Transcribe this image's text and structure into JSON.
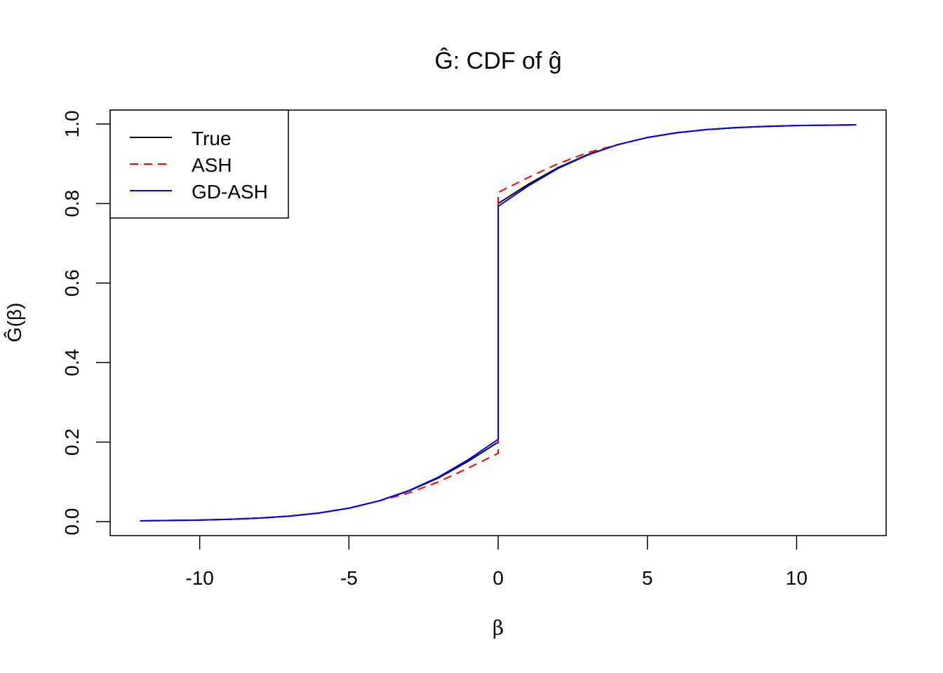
{
  "chart_data": {
    "type": "line",
    "title": "Ĝ: CDF of ĝ",
    "xlabel": "β",
    "ylabel": "Ĝ(β)",
    "xlim": [
      -13,
      13
    ],
    "ylim": [
      -0.035,
      1.035
    ],
    "xticks": [
      -10,
      -5,
      0,
      5,
      10
    ],
    "xtick_labels": [
      "-10",
      "-5",
      "0",
      "5",
      "10"
    ],
    "yticks": [
      0,
      0.2,
      0.4,
      0.6,
      0.8,
      1.0
    ],
    "ytick_labels": [
      "0.0",
      "0.2",
      "0.4",
      "0.6",
      "0.8",
      "1.0"
    ],
    "grid": false,
    "legend_position": "top-left",
    "series": [
      {
        "name": "True",
        "color": "#000000",
        "dash": "solid",
        "x": [
          -12,
          -11,
          -10,
          -9,
          -8,
          -7,
          -6,
          -5,
          -4,
          -3,
          -2,
          -1,
          0,
          0,
          1,
          2,
          3,
          4,
          5,
          6,
          7,
          8,
          9,
          10,
          11,
          12
        ],
        "y": [
          0.002,
          0.003,
          0.004,
          0.006,
          0.009,
          0.014,
          0.022,
          0.034,
          0.052,
          0.077,
          0.11,
          0.152,
          0.2,
          0.8,
          0.848,
          0.89,
          0.923,
          0.948,
          0.966,
          0.978,
          0.986,
          0.991,
          0.994,
          0.996,
          0.997,
          0.998
        ]
      },
      {
        "name": "ASH",
        "color": "#ff0000",
        "dash": "dashed",
        "x": [
          -12,
          -11,
          -10,
          -9,
          -8,
          -7,
          -6,
          -5,
          -4,
          -3.3,
          -3,
          -2,
          -1,
          0,
          0,
          1,
          2,
          3,
          3.3,
          4,
          5,
          6,
          7,
          8,
          9,
          10,
          11,
          12
        ],
        "y": [
          0.002,
          0.003,
          0.004,
          0.006,
          0.009,
          0.014,
          0.022,
          0.034,
          0.052,
          0.066,
          0.072,
          0.1,
          0.135,
          0.172,
          0.828,
          0.865,
          0.9,
          0.928,
          0.934,
          0.948,
          0.966,
          0.978,
          0.986,
          0.991,
          0.994,
          0.996,
          0.997,
          0.998
        ]
      },
      {
        "name": "GD-ASH",
        "color": "#0000ff",
        "dash": "solid",
        "x": [
          -12,
          -11,
          -10,
          -9,
          -8,
          -7,
          -6,
          -5,
          -4,
          -3,
          -2,
          -1,
          0,
          0,
          1,
          2,
          3,
          4,
          5,
          6,
          7,
          8,
          9,
          10,
          11,
          12
        ],
        "y": [
          0.002,
          0.003,
          0.004,
          0.006,
          0.009,
          0.014,
          0.022,
          0.034,
          0.052,
          0.078,
          0.112,
          0.156,
          0.207,
          0.793,
          0.844,
          0.888,
          0.922,
          0.948,
          0.966,
          0.978,
          0.986,
          0.991,
          0.994,
          0.996,
          0.997,
          0.998
        ]
      }
    ]
  }
}
